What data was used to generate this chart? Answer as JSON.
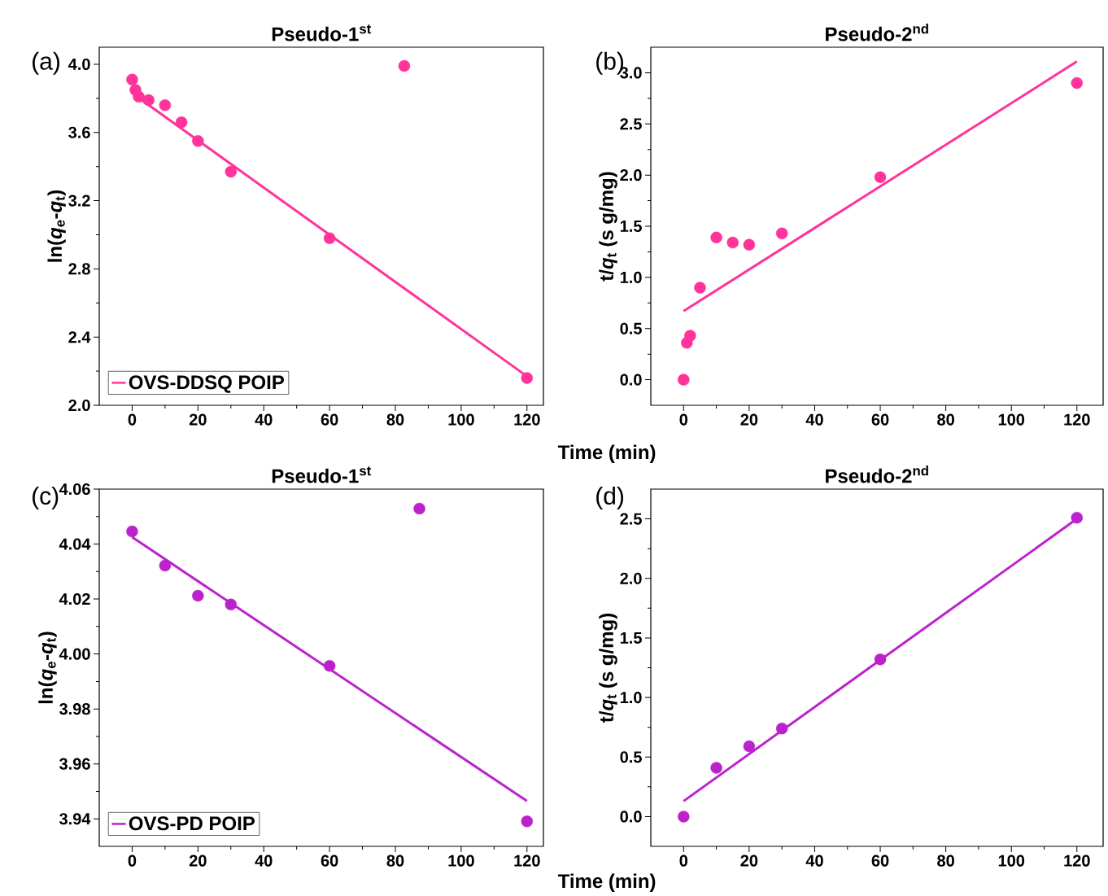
{
  "chart_data": [
    {
      "type": "scatter",
      "title": "Pseudo-1$^{st}$",
      "ylabel": "ln(*q*$_{e}$-*q*$_{t}$)",
      "xlabel": "Time (min)",
      "annotations": [
        "(a)"
      ],
      "xlim": [
        -10,
        125
      ],
      "ylim": [
        2.0,
        4.1
      ],
      "xticks": [
        0,
        20,
        40,
        60,
        80,
        100,
        120
      ],
      "yticks": [
        {
          "value": 2.0,
          "label": "2.0"
        },
        2.4,
        2.8,
        3.2,
        3.6,
        {
          "value": 4.0,
          "label": "4.0"
        }
      ],
      "legend": "bottom left",
      "series": [
        {
          "type": "scatter",
          "marker": "circle",
          "color": "#ff3399",
          "x": [
            0,
            1,
            2,
            5,
            10,
            15,
            20,
            30,
            60,
            120,
            82.7
          ],
          "values": [
            3.91,
            3.85,
            3.81,
            3.79,
            3.76,
            3.66,
            3.55,
            3.37,
            2.98,
            2.16,
            3.99
          ]
        },
        {
          "type": "line",
          "marker": "none",
          "name": "OVS-DDSQ POIP",
          "color": "#ff3399",
          "x": [
            0,
            120
          ],
          "values": [
            3.83,
            2.17
          ]
        }
      ]
    },
    {
      "type": "scatter",
      "title": "Pseudo-2$^{nd}$",
      "ylabel": "t/*q*$_{t}$ (s g/mg)",
      "annotations": [
        "(b)"
      ],
      "xlim": [
        -10,
        128
      ],
      "ylim": [
        -0.25,
        3.25
      ],
      "xticks": [
        0,
        20,
        40,
        60,
        80,
        100,
        120
      ],
      "yticks": [
        {
          "value": 0,
          "label": "0.0"
        },
        0.5,
        {
          "value": 1,
          "label": "1.0"
        },
        1.5,
        {
          "value": 2,
          "label": "2.0"
        },
        2.5,
        {
          "value": 3,
          "label": "3.0"
        }
      ],
      "series": [
        {
          "type": "scatter",
          "marker": "circle",
          "color": "#ff3399",
          "x": [
            0,
            1,
            2,
            5,
            10,
            15,
            20,
            30,
            60,
            120
          ],
          "values": [
            0.0,
            0.36,
            0.43,
            0.9,
            1.39,
            1.34,
            1.32,
            1.43,
            1.98,
            2.9
          ]
        },
        {
          "type": "line",
          "marker": "none",
          "color": "#ff3399",
          "x": [
            0,
            120
          ],
          "values": [
            0.67,
            3.11
          ]
        }
      ]
    },
    {
      "type": "scatter",
      "title": "Pseudo-1$^{st}$",
      "ylabel": "ln(*q*$_{e}$-*q*$_{t}$)",
      "xlabel": "Time (min)",
      "annotations": [
        "(c)"
      ],
      "xlim": [
        -10,
        125
      ],
      "ylim": [
        3.93,
        4.06
      ],
      "xticks": [
        0,
        20,
        40,
        60,
        80,
        100,
        120
      ],
      "yticks": [
        3.94,
        3.96,
        3.98,
        {
          "value": 4.0,
          "label": "4.00"
        },
        4.02,
        4.04,
        4.06
      ],
      "legend": "bottom left",
      "series": [
        {
          "type": "scatter",
          "marker": "circle",
          "color": "#bb22cc",
          "x": [
            0,
            10,
            20,
            30,
            60,
            120,
            87.3
          ],
          "values": [
            4.0446,
            4.0322,
            4.0212,
            4.018,
            3.9957,
            3.9391,
            4.0529
          ]
        },
        {
          "type": "line",
          "marker": "none",
          "name": "OVS-PD POIP",
          "color": "#bb22cc",
          "x": [
            0,
            120
          ],
          "values": [
            4.0425,
            3.9465
          ]
        }
      ]
    },
    {
      "type": "scatter",
      "title": "Pseudo-2$^{nd}$",
      "ylabel": "t/*q*$_{t}$ (s g/mg)",
      "annotations": [
        "(d)"
      ],
      "xlim": [
        -10,
        128
      ],
      "ylim": [
        -0.25,
        2.75
      ],
      "xticks": [
        0,
        20,
        40,
        60,
        80,
        100,
        120
      ],
      "yticks": [
        {
          "value": 0,
          "label": "0.0"
        },
        0.5,
        {
          "value": 1,
          "label": "1.0"
        },
        1.5,
        {
          "value": 2,
          "label": "2.0"
        },
        2.5
      ],
      "series": [
        {
          "type": "scatter",
          "marker": "circle",
          "color": "#bb22cc",
          "x": [
            0,
            10,
            20,
            30,
            60,
            120
          ],
          "values": [
            0.0,
            0.41,
            0.59,
            0.74,
            1.32,
            2.51
          ]
        },
        {
          "type": "line",
          "marker": "none",
          "color": "#bb22cc",
          "x": [
            0,
            120
          ],
          "values": [
            0.13,
            2.5
          ]
        }
      ]
    }
  ]
}
